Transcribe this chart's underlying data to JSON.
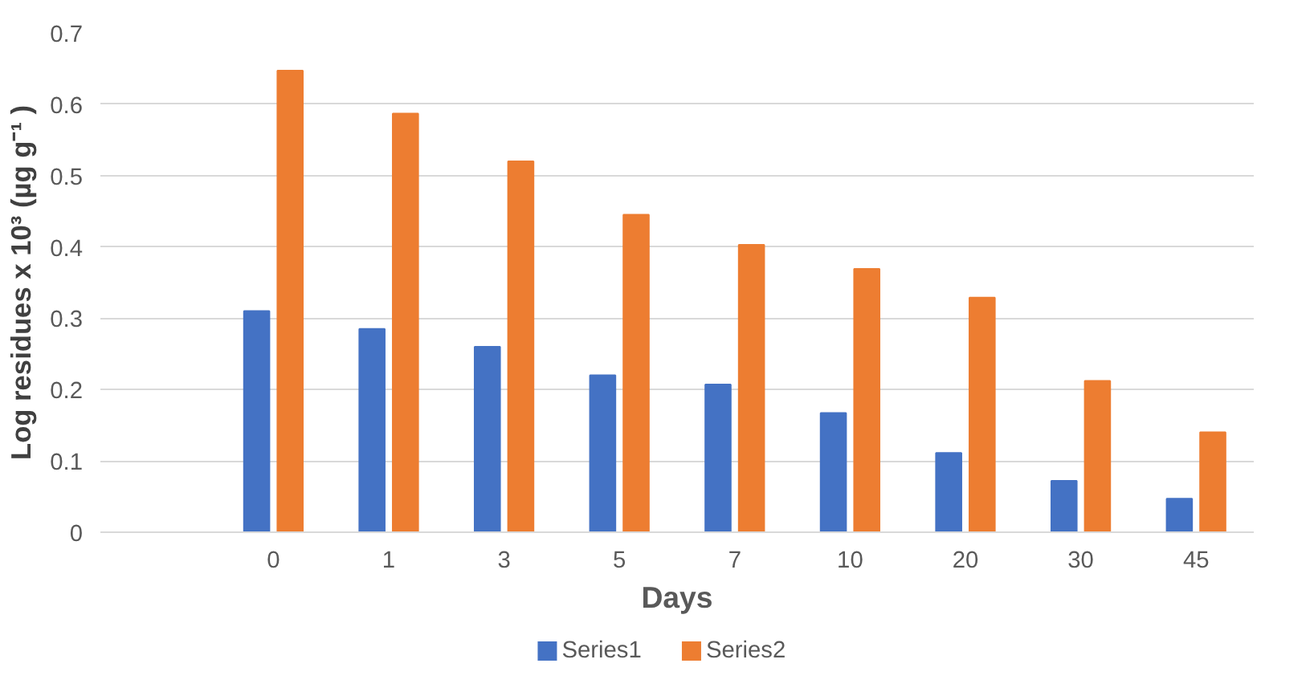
{
  "chart_data": {
    "type": "bar",
    "xlabel": "Days",
    "ylabel": "Log residues x 10³ (µg g⁻¹ )",
    "categories": [
      null,
      "0",
      "1",
      "3",
      "5",
      "7",
      "10",
      "20",
      "30",
      "45"
    ],
    "series": [
      {
        "name": "Series1",
        "color": "#4472c4",
        "values": [
          null,
          0.31,
          0.285,
          0.26,
          0.22,
          0.207,
          0.167,
          0.111,
          0.072,
          0.047
        ]
      },
      {
        "name": "Series2",
        "color": "#ed7d31",
        "values": [
          null,
          0.647,
          0.587,
          0.52,
          0.445,
          0.403,
          0.369,
          0.329,
          0.212,
          0.14
        ]
      }
    ],
    "ylim": [
      0,
      0.7
    ],
    "yticks": [
      0,
      0.1,
      0.2,
      0.3,
      0.4,
      0.5,
      0.6,
      0.7
    ],
    "grid": "y",
    "legend": "bottom"
  }
}
